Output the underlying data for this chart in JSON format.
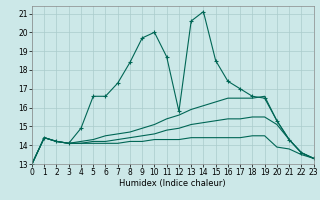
{
  "xlabel": "Humidex (Indice chaleur)",
  "xlim": [
    0,
    23
  ],
  "ylim": [
    13,
    21.4
  ],
  "yticks": [
    13,
    14,
    15,
    16,
    17,
    18,
    19,
    20,
    21
  ],
  "xticks": [
    0,
    1,
    2,
    3,
    4,
    5,
    6,
    7,
    8,
    9,
    10,
    11,
    12,
    13,
    14,
    15,
    16,
    17,
    18,
    19,
    20,
    21,
    22,
    23
  ],
  "bg_color": "#cce8e8",
  "grid_color": "#aacccc",
  "line_color": "#006655",
  "lines": [
    {
      "x": [
        0,
        1,
        2,
        3,
        4,
        5,
        6,
        7,
        8,
        9,
        10,
        11,
        12,
        13,
        14,
        15,
        16,
        17,
        18,
        19,
        20,
        21,
        22,
        23
      ],
      "y": [
        13,
        14.4,
        14.2,
        14.1,
        14.9,
        16.6,
        16.6,
        17.3,
        18.4,
        19.7,
        20.0,
        18.7,
        15.8,
        20.6,
        21.1,
        18.5,
        17.4,
        17.0,
        16.6,
        16.5,
        15.3,
        14.3,
        13.6,
        13.3
      ],
      "marker": true
    },
    {
      "x": [
        0,
        1,
        2,
        3,
        4,
        5,
        6,
        7,
        8,
        9,
        10,
        11,
        12,
        13,
        14,
        15,
        16,
        17,
        18,
        19,
        20,
        21,
        22,
        23
      ],
      "y": [
        13,
        14.4,
        14.2,
        14.1,
        14.2,
        14.3,
        14.5,
        14.6,
        14.7,
        14.9,
        15.1,
        15.4,
        15.6,
        15.9,
        16.1,
        16.3,
        16.5,
        16.5,
        16.5,
        16.6,
        15.3,
        14.3,
        13.6,
        13.3
      ],
      "marker": false
    },
    {
      "x": [
        0,
        1,
        2,
        3,
        4,
        5,
        6,
        7,
        8,
        9,
        10,
        11,
        12,
        13,
        14,
        15,
        16,
        17,
        18,
        19,
        20,
        21,
        22,
        23
      ],
      "y": [
        13,
        14.4,
        14.2,
        14.1,
        14.1,
        14.2,
        14.2,
        14.3,
        14.4,
        14.5,
        14.6,
        14.8,
        14.9,
        15.1,
        15.2,
        15.3,
        15.4,
        15.4,
        15.5,
        15.5,
        15.1,
        14.3,
        13.6,
        13.3
      ],
      "marker": false
    },
    {
      "x": [
        0,
        1,
        2,
        3,
        4,
        5,
        6,
        7,
        8,
        9,
        10,
        11,
        12,
        13,
        14,
        15,
        16,
        17,
        18,
        19,
        20,
        21,
        22,
        23
      ],
      "y": [
        13,
        14.4,
        14.2,
        14.1,
        14.1,
        14.1,
        14.1,
        14.1,
        14.2,
        14.2,
        14.3,
        14.3,
        14.3,
        14.4,
        14.4,
        14.4,
        14.4,
        14.4,
        14.5,
        14.5,
        13.9,
        13.8,
        13.5,
        13.3
      ],
      "marker": false
    }
  ]
}
